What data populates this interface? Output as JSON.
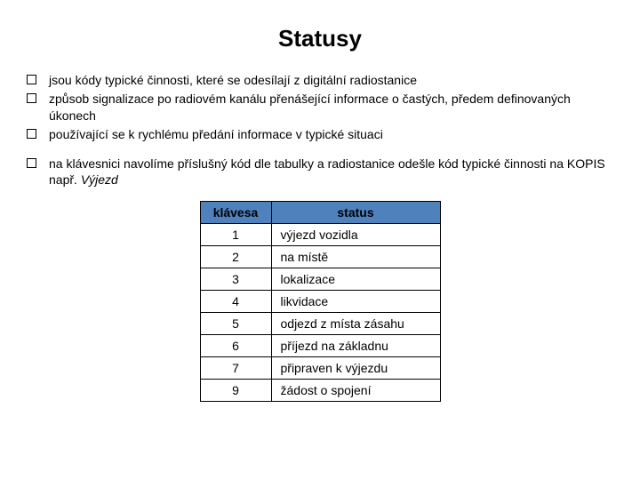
{
  "title": "Statusy",
  "bullets_group1": [
    "jsou kódy typické činnosti, které se odesílají z digitální radiostanice",
    "způsob signalizace po radiovém kanálu přenášející informace o častých, předem definovaných úkonech",
    "používající se k rychlému předání informace v typické situaci"
  ],
  "bullets_group2_prefix": "na klávesnici navolíme příslušný kód dle tabulky a radiostanice odešle kód typické činnosti na KOPIS např. ",
  "bullets_group2_italic": "Výjezd",
  "table": {
    "header_bg": "#4f81bd",
    "columns": [
      "klávesa",
      "status"
    ],
    "rows": [
      [
        "1",
        "výjezd vozidla"
      ],
      [
        "2",
        "na místě"
      ],
      [
        "3",
        "lokalizace"
      ],
      [
        "4",
        "likvidace"
      ],
      [
        "5",
        "odjezd z místa zásahu"
      ],
      [
        "6",
        "příjezd na základnu"
      ],
      [
        "7",
        "připraven k výjezdu"
      ],
      [
        "9",
        "žádost o spojení"
      ]
    ]
  }
}
